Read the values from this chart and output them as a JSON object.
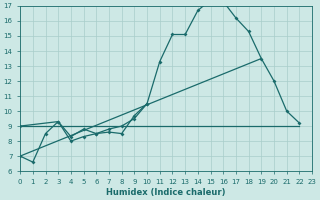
{
  "background_color": "#cde8e5",
  "grid_color": "#a8ceca",
  "line_color": "#1a6b6b",
  "xlabel": "Humidex (Indice chaleur)",
  "xmin": 0,
  "xmax": 23,
  "ymin": 6,
  "ymax": 17,
  "line1_x": [
    0,
    1,
    2,
    3,
    4,
    5,
    6,
    7,
    8,
    9,
    10,
    11,
    12,
    13,
    14,
    15,
    16,
    17,
    18,
    19,
    20,
    21,
    22
  ],
  "line1_y": [
    7.0,
    6.6,
    8.5,
    9.3,
    8.0,
    8.3,
    8.5,
    8.6,
    8.5,
    9.7,
    10.5,
    13.3,
    15.1,
    15.1,
    16.7,
    17.4,
    17.3,
    16.2,
    15.3,
    13.5,
    12.0,
    10.0,
    9.2
  ],
  "line2_x": [
    0,
    3,
    4,
    5,
    6,
    7,
    8,
    9,
    10
  ],
  "line2_y": [
    9.0,
    9.3,
    8.3,
    8.8,
    8.5,
    8.8,
    9.0,
    9.5,
    10.5
  ],
  "line3_x": [
    0,
    22
  ],
  "line3_y": [
    9.0,
    9.0
  ],
  "line4_x": [
    0,
    19
  ],
  "line4_y": [
    7.0,
    13.5
  ]
}
